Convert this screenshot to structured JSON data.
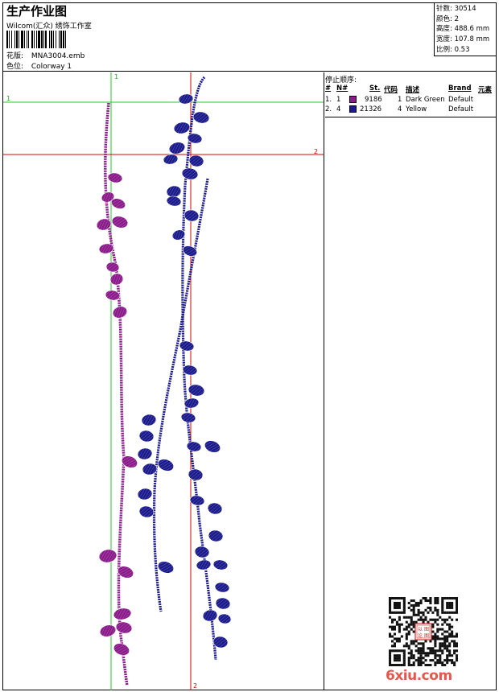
{
  "header": {
    "title": "生产作业图",
    "company": "Wilcom(汇众) 绣饰工作室",
    "design_label": "花版:",
    "design_value": "MNA3004.emb",
    "colorway_label": "色位:",
    "colorway_value": "Colorway 1"
  },
  "stats": {
    "stitches": "针数: 30514",
    "colors": "颜色: 2",
    "height": "高度: 488.6 mm",
    "width": "宽度: 107.8 mm",
    "scale": "比例: 0.53"
  },
  "guides": {
    "top_green": "1",
    "left_green": "1",
    "right_red": "2",
    "bottom_red": "2"
  },
  "stop_sequence": {
    "title": "停止顺序:",
    "headers": {
      "num": "#",
      "needle": "N#",
      "stitches": "St.",
      "code": "代码",
      "desc": "描述",
      "brand": "Brand",
      "element": "元素"
    },
    "rows": [
      {
        "order": "1.",
        "needle": "1",
        "stitches": "9186",
        "code": "1",
        "desc": "Dark Green",
        "brand": "Default",
        "swatch": "#8b1a8b"
      },
      {
        "order": "2.",
        "needle": "4",
        "stitches": "21326",
        "code": "4",
        "desc": "Yellow",
        "brand": "Default",
        "swatch": "#1a1a8c"
      }
    ]
  },
  "colors": {
    "purple": "#8b1a8b",
    "navy": "#1a1a8c",
    "guide_green": "#22cc22",
    "guide_red": "#dd0000",
    "watermark_red": "#e8564c"
  },
  "watermark": {
    "text": "6xiu.com",
    "qr_center": "以图论图"
  }
}
